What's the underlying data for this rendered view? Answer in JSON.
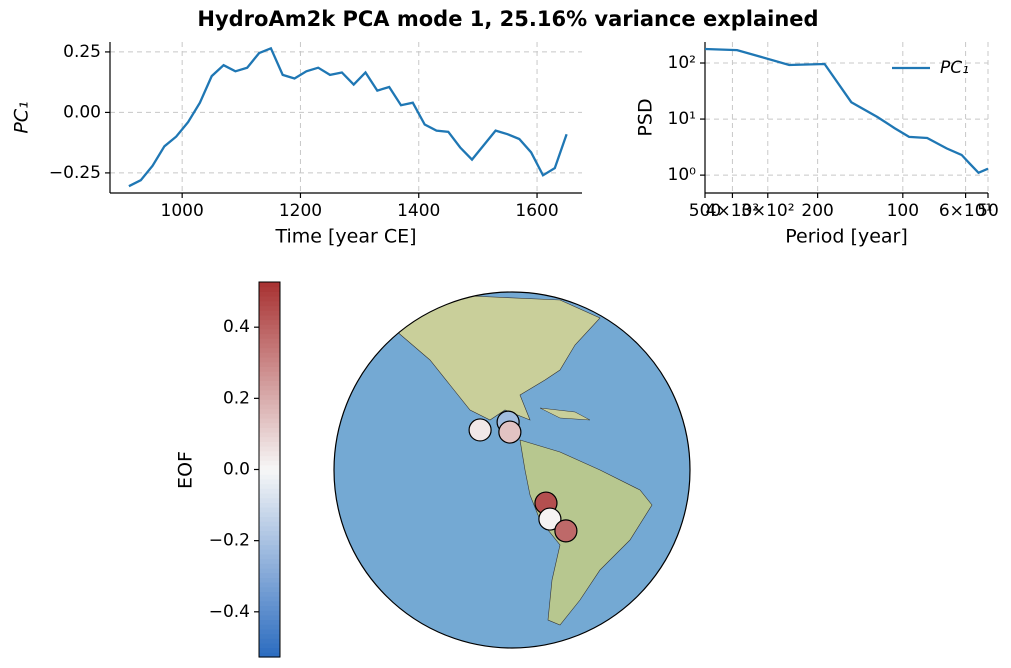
{
  "title": "HydroAm2k PCA mode 1, 25.16% variance explained",
  "chart_data": [
    {
      "type": "line",
      "ylabel": "PC₁",
      "xlabel": "Time [year CE]",
      "color": "#1f77b4",
      "grid": true,
      "x": [
        910,
        930,
        950,
        970,
        990,
        1010,
        1030,
        1050,
        1070,
        1090,
        1110,
        1130,
        1150,
        1170,
        1190,
        1210,
        1230,
        1250,
        1270,
        1290,
        1310,
        1330,
        1350,
        1370,
        1390,
        1410,
        1430,
        1450,
        1470,
        1490,
        1510,
        1530,
        1550,
        1570,
        1590,
        1610,
        1630,
        1650
      ],
      "values": [
        -0.305,
        -0.28,
        -0.22,
        -0.14,
        -0.1,
        -0.04,
        0.04,
        0.15,
        0.195,
        0.17,
        0.185,
        0.245,
        0.265,
        0.155,
        0.14,
        0.17,
        0.185,
        0.155,
        0.165,
        0.115,
        0.165,
        0.09,
        0.105,
        0.03,
        0.04,
        -0.05,
        -0.075,
        -0.08,
        -0.145,
        -0.195,
        -0.135,
        -0.075,
        -0.09,
        -0.11,
        -0.165,
        -0.26,
        -0.23,
        -0.09
      ],
      "xlim": [
        878,
        1676
      ],
      "xticks": [
        1000,
        1200,
        1400,
        1600
      ],
      "ylim": [
        -0.333,
        0.291
      ],
      "yticks": [
        {
          "value": -0.25,
          "label": "−0.25"
        },
        {
          "value": 0,
          "label": "0.00"
        },
        0.25
      ]
    },
    {
      "type": "line",
      "xlog": true,
      "ylog": true,
      "ylabel": "PSD",
      "xlabel": "Period [year]",
      "color": "#1f77b4",
      "grid": true,
      "legend": "upper right",
      "series": [
        {
          "name": "PC₁",
          "color": "#1f77b4",
          "x": [
            500,
            385,
            316,
            252,
            189,
            152,
            123,
            107,
            95,
            82,
            70,
            62,
            58,
            54,
            50
          ],
          "values": [
            178,
            170,
            128,
            92,
            96,
            20,
            10.9,
            6.9,
            4.8,
            4.6,
            3.0,
            2.3,
            1.6,
            1.1,
            1.3
          ]
        }
      ],
      "xlim": [
        500,
        50
      ],
      "xticks": [
        500,
        {
          "value": 400,
          "label": "4×10²"
        },
        {
          "value": 300,
          "label": "3×10²"
        },
        200,
        100,
        {
          "value": 60,
          "label": "6×10¹"
        },
        50
      ],
      "ylim": [
        0.48,
        237
      ],
      "yticks": [
        {
          "value": 1,
          "label": "10⁰"
        },
        {
          "value": 10,
          "label": "10¹"
        },
        {
          "value": 100,
          "label": "10²"
        }
      ]
    },
    {
      "type": "colorbar",
      "ylabel": "EOF",
      "cmap": [
        "#2a6bbf",
        "#f7f7f7",
        "#a83232"
      ],
      "ylim": [
        -0.527,
        0.527
      ],
      "yticks": [
        {
          "value": -0.4,
          "label": "−0.4"
        },
        {
          "value": -0.2,
          "label": "−0.2"
        },
        {
          "value": 0,
          "label": "0.0"
        },
        0.2,
        0.4
      ]
    },
    {
      "type": "map",
      "projection": "orthographic",
      "center": [
        -88,
        0
      ],
      "lon": [
        -89.3,
        -98.6,
        -88.7,
        -76.8,
        -75.2,
        -69.2
      ],
      "lat": [
        15.6,
        13.0,
        12.3,
        -10.7,
        -16.0,
        -20.0
      ],
      "values": [
        -0.22,
        0.04,
        0.14,
        0.45,
        0.01,
        0.38
      ]
    }
  ]
}
